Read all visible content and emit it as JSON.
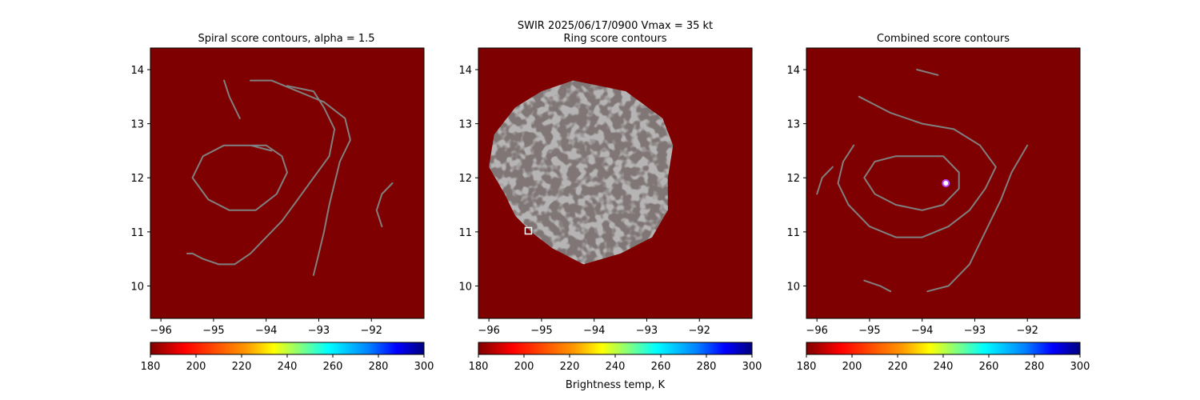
{
  "suptitle": "SWIR  2025/06/17/0900    Vmax = 35 kt",
  "colorbar_label": "Brightness temp, K",
  "chart_data": [
    {
      "type": "heatmap",
      "title": "Spiral score contours, alpha =  1.5",
      "xlim": [
        -96.2,
        -91.0
      ],
      "ylim": [
        9.4,
        14.4
      ],
      "xticks": [
        -96,
        -95,
        -94,
        -93,
        -92
      ],
      "yticks": [
        10,
        11,
        12,
        13,
        14
      ],
      "colorbar": {
        "min": 180,
        "max": 300,
        "ticks": [
          180,
          200,
          220,
          240,
          260,
          280,
          300
        ],
        "cmap": "jet_r"
      },
      "contour_color": "#808080",
      "contours": [
        [
          [
            -94.4,
            12.6
          ],
          [
            -94.0,
            12.6
          ],
          [
            -93.7,
            12.4
          ],
          [
            -93.6,
            12.1
          ],
          [
            -93.8,
            11.7
          ],
          [
            -94.2,
            11.4
          ],
          [
            -94.7,
            11.4
          ],
          [
            -95.1,
            11.6
          ],
          [
            -95.4,
            12.0
          ],
          [
            -95.2,
            12.4
          ],
          [
            -94.8,
            12.6
          ],
          [
            -94.3,
            12.6
          ],
          [
            -93.9,
            12.5
          ]
        ],
        [
          [
            -93.6,
            13.7
          ],
          [
            -93.1,
            13.6
          ],
          [
            -92.9,
            13.3
          ],
          [
            -92.7,
            12.9
          ],
          [
            -92.8,
            12.4
          ],
          [
            -93.1,
            12.0
          ],
          [
            -93.4,
            11.6
          ],
          [
            -93.7,
            11.2
          ],
          [
            -94.0,
            10.9
          ],
          [
            -94.3,
            10.6
          ],
          [
            -94.6,
            10.4
          ],
          [
            -94.9,
            10.4
          ],
          [
            -95.2,
            10.5
          ],
          [
            -95.4,
            10.6
          ],
          [
            -95.5,
            10.6
          ]
        ],
        [
          [
            -94.8,
            13.8
          ],
          [
            -94.7,
            13.5
          ],
          [
            -94.5,
            13.1
          ]
        ],
        [
          [
            -94.3,
            13.8
          ],
          [
            -93.9,
            13.8
          ],
          [
            -93.4,
            13.6
          ],
          [
            -92.9,
            13.4
          ],
          [
            -92.5,
            13.1
          ],
          [
            -92.4,
            12.7
          ],
          [
            -92.6,
            12.3
          ],
          [
            -92.7,
            11.9
          ],
          [
            -92.8,
            11.5
          ],
          [
            -92.9,
            11.0
          ],
          [
            -93.0,
            10.6
          ],
          [
            -93.1,
            10.2
          ]
        ],
        [
          [
            -91.6,
            11.9
          ],
          [
            -91.8,
            11.7
          ],
          [
            -91.9,
            11.4
          ],
          [
            -91.8,
            11.1
          ]
        ]
      ],
      "markers": []
    },
    {
      "type": "heatmap",
      "title": "Ring score contours",
      "xlim": [
        -96.2,
        -91.0
      ],
      "ylim": [
        9.4,
        14.4
      ],
      "xticks": [
        -96,
        -95,
        -94,
        -93,
        -92
      ],
      "yticks": [
        10,
        11,
        12,
        13,
        14
      ],
      "colorbar": {
        "min": 180,
        "max": 300,
        "ticks": [
          180,
          200,
          220,
          240,
          260,
          280,
          300
        ],
        "cmap": "jet_r"
      },
      "contour_color": "#808080",
      "contours": [],
      "filled_region": {
        "label": "ring-score-field",
        "outline": [
          [
            -94.4,
            13.8
          ],
          [
            -93.4,
            13.6
          ],
          [
            -92.7,
            13.1
          ],
          [
            -92.5,
            12.6
          ],
          [
            -92.6,
            12.0
          ],
          [
            -92.6,
            11.4
          ],
          [
            -92.9,
            10.9
          ],
          [
            -93.5,
            10.6
          ],
          [
            -94.2,
            10.4
          ],
          [
            -94.8,
            10.7
          ],
          [
            -95.2,
            11.0
          ],
          [
            -95.5,
            11.3
          ],
          [
            -95.7,
            11.7
          ],
          [
            -96.0,
            12.2
          ],
          [
            -95.9,
            12.8
          ],
          [
            -95.5,
            13.3
          ],
          [
            -95.0,
            13.6
          ]
        ]
      },
      "markers": [
        {
          "x": -95.25,
          "y": 11.02,
          "shape": "square",
          "color": "#ffffff"
        }
      ]
    },
    {
      "type": "heatmap",
      "title": "Combined score contours",
      "xlim": [
        -96.2,
        -91.0
      ],
      "ylim": [
        9.4,
        14.4
      ],
      "xticks": [
        -96,
        -95,
        -94,
        -93,
        -92
      ],
      "yticks": [
        10,
        11,
        12,
        13,
        14
      ],
      "colorbar": {
        "min": 180,
        "max": 300,
        "ticks": [
          180,
          200,
          220,
          240,
          260,
          280,
          300
        ],
        "cmap": "jet_r"
      },
      "contour_color": "#808080",
      "contours": [
        [
          [
            -94.0,
            12.4
          ],
          [
            -93.6,
            12.4
          ],
          [
            -93.3,
            12.1
          ],
          [
            -93.3,
            11.8
          ],
          [
            -93.6,
            11.5
          ],
          [
            -94.0,
            11.4
          ],
          [
            -94.5,
            11.5
          ],
          [
            -94.9,
            11.7
          ],
          [
            -95.1,
            12.0
          ],
          [
            -94.9,
            12.3
          ],
          [
            -94.5,
            12.4
          ],
          [
            -94.0,
            12.4
          ]
        ],
        [
          [
            -95.2,
            13.5
          ],
          [
            -94.6,
            13.2
          ],
          [
            -94.0,
            13.0
          ],
          [
            -93.4,
            12.9
          ],
          [
            -92.9,
            12.6
          ],
          [
            -92.6,
            12.2
          ],
          [
            -92.8,
            11.8
          ],
          [
            -93.1,
            11.4
          ],
          [
            -93.5,
            11.1
          ],
          [
            -94.0,
            10.9
          ],
          [
            -94.5,
            10.9
          ],
          [
            -95.0,
            11.1
          ],
          [
            -95.4,
            11.5
          ],
          [
            -95.6,
            11.9
          ],
          [
            -95.5,
            12.3
          ],
          [
            -95.3,
            12.6
          ]
        ],
        [
          [
            -95.7,
            12.2
          ],
          [
            -95.9,
            12.0
          ],
          [
            -96.0,
            11.7
          ]
        ],
        [
          [
            -92.0,
            12.6
          ],
          [
            -92.3,
            12.1
          ],
          [
            -92.5,
            11.6
          ],
          [
            -92.8,
            11.0
          ],
          [
            -93.1,
            10.4
          ],
          [
            -93.5,
            10.0
          ],
          [
            -93.9,
            9.9
          ]
        ],
        [
          [
            -95.1,
            10.1
          ],
          [
            -94.8,
            10.0
          ],
          [
            -94.6,
            9.9
          ]
        ],
        [
          [
            -94.1,
            14.0
          ],
          [
            -93.7,
            13.9
          ]
        ]
      ],
      "markers": [
        {
          "x": -93.55,
          "y": 11.9,
          "shape": "circle",
          "color": "#c040ff"
        }
      ]
    }
  ]
}
